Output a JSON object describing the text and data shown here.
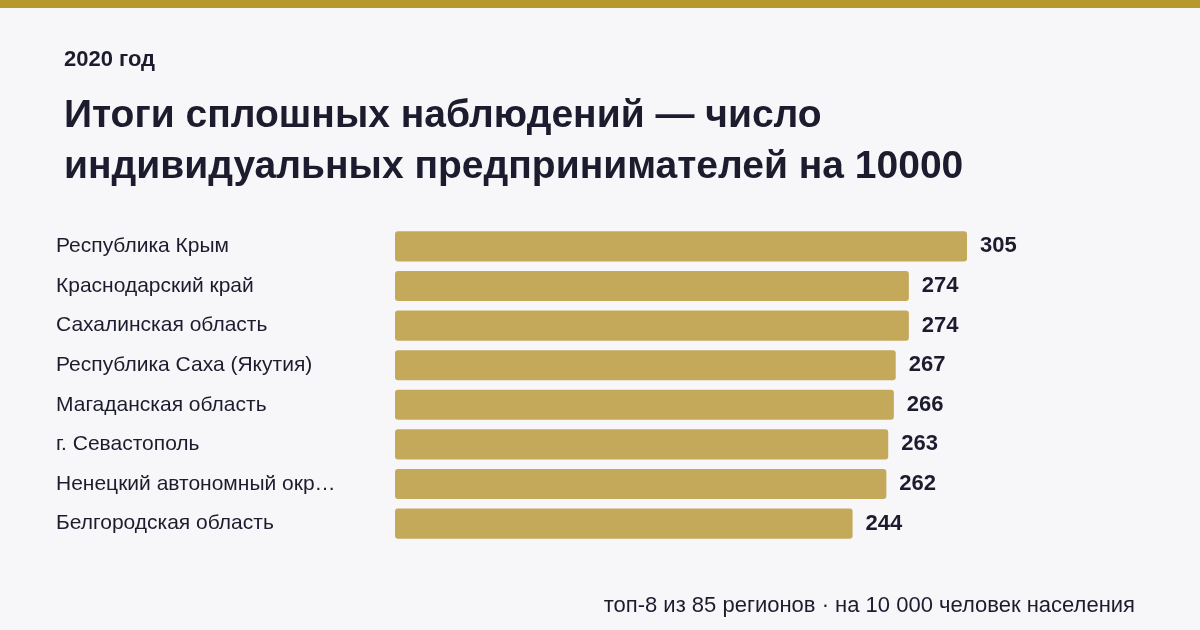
{
  "chart_data": {
    "type": "bar",
    "orientation": "horizontal",
    "title": "Итоги сплошных наблюдений — число индивидуальных предпринимателей на 10000",
    "subtitle": "2020 год",
    "categories": [
      "Республика Крым",
      "Краснодарский край",
      "Сахалинская область",
      "Республика Саха (Якутия)",
      "Магаданская область",
      "г. Севастополь",
      "Ненецкий автономный окр…",
      "Белгородская область"
    ],
    "values": [
      305,
      274,
      274,
      267,
      266,
      263,
      262,
      244
    ],
    "color": "#c5a95a",
    "data_labels": true,
    "tick_labels": "y",
    "annotations": [
      "топ-8 из 85 регионов · на 10 000 человек населения"
    ]
  }
}
